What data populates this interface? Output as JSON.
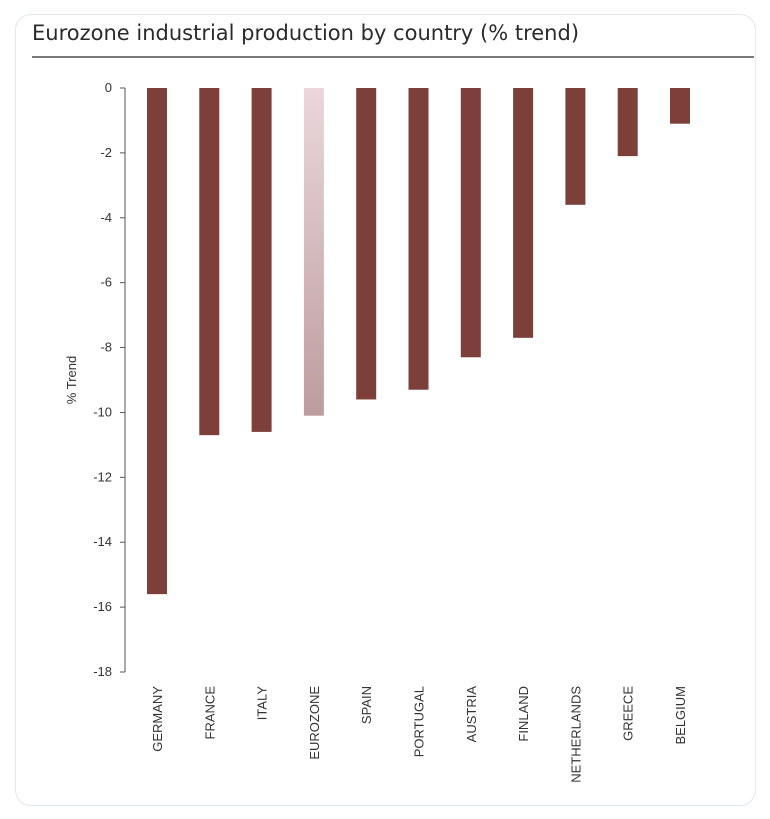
{
  "chart_data": {
    "type": "bar",
    "title": "Eurozone industrial production by country (% trend)",
    "xlabel": "",
    "ylabel": "% Trend",
    "ylim": [
      -18,
      0
    ],
    "yticks": [
      0,
      -2,
      -4,
      -6,
      -8,
      -10,
      -12,
      -14,
      -16,
      -18
    ],
    "grid": false,
    "categories": [
      "GERMANY",
      "FRANCE",
      "ITALY",
      "EUROZONE",
      "SPAIN",
      "PORTUGAL",
      "AUSTRIA",
      "FINLAND",
      "NETHERLANDS",
      "GREECE",
      "BELGIUM"
    ],
    "values": [
      -15.6,
      -10.7,
      -10.6,
      -10.1,
      -9.6,
      -9.3,
      -8.3,
      -7.7,
      -3.6,
      -2.1,
      -1.1
    ],
    "colors": {
      "bar": "#7d3f3a",
      "highlight_top": "#ead7db",
      "highlight_bottom": "#bd9c9f",
      "axis": "#555555"
    },
    "highlight_category": "EUROZONE"
  }
}
